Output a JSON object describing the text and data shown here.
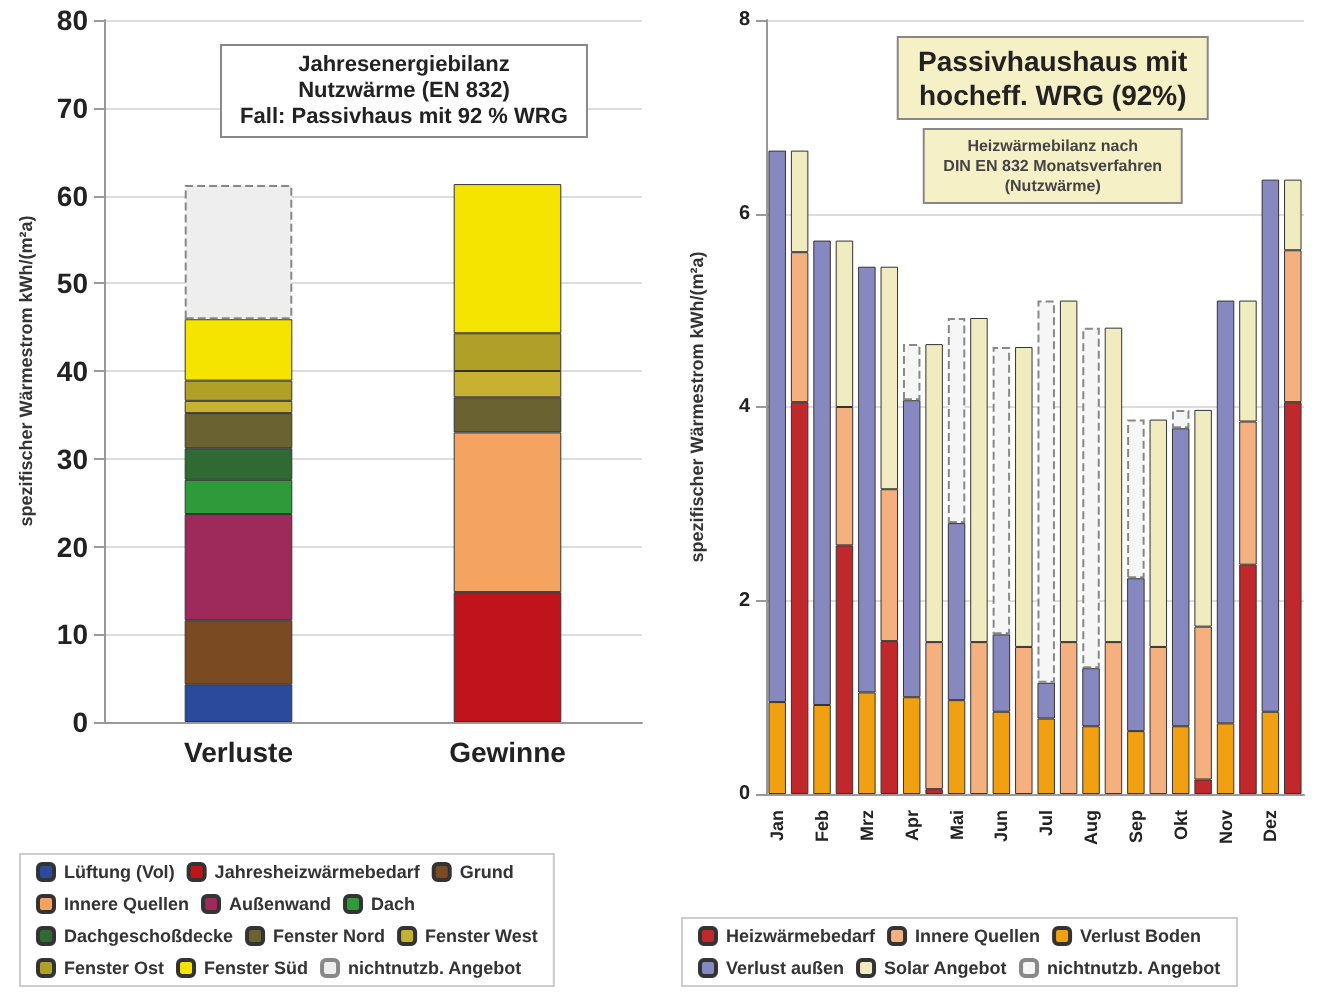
{
  "chart_data": [
    {
      "type": "bar",
      "stacked": true,
      "title": "Jahresenergiebilanz\nNutzwärme (EN 832)\nFall: Passivhaus mit 92 % WRG",
      "ylabel": "spezifischer Wärmestrom kWh/(m²a)",
      "categories": [
        "Verluste",
        "Gewinne"
      ],
      "ylim": [
        0,
        80
      ],
      "yticks": [
        0,
        10,
        20,
        30,
        40,
        50,
        60,
        70,
        80
      ],
      "grid": "y",
      "legend": "bottom",
      "series": [
        {
          "name": "Lüftung (Vol)",
          "color": "#2b4a9b",
          "values": [
            4.3,
            null
          ]
        },
        {
          "name": "Jahresheizwärmebedarf",
          "color": "#c0141c",
          "values": [
            null,
            14.8
          ]
        },
        {
          "name": "Grund",
          "color": "#7a4a22",
          "values": [
            7.3,
            null
          ]
        },
        {
          "name": "Innere Quellen",
          "color": "#f4a460",
          "values": [
            null,
            18.2
          ]
        },
        {
          "name": "Außenwand",
          "color": "#9e2a5a",
          "values": [
            12.1,
            null
          ]
        },
        {
          "name": "Dach",
          "color": "#2e9a3a",
          "values": [
            3.9,
            null
          ]
        },
        {
          "name": "Dachgeschoßdecke",
          "color": "#2f6a32",
          "values": [
            3.6,
            null
          ]
        },
        {
          "name": "Fenster Nord",
          "color": "#6b6232",
          "values": [
            4.0,
            4.0
          ]
        },
        {
          "name": "Fenster West",
          "color": "#c8b030",
          "values": [
            1.4,
            3.0
          ]
        },
        {
          "name": "Fenster Ost",
          "color": "#b0a028",
          "values": [
            2.3,
            4.3
          ]
        },
        {
          "name": "Fenster Süd",
          "color": "#f5e400",
          "values": [
            7.0,
            17.0
          ]
        },
        {
          "name": "nichtnutzb. Angebot",
          "color": "#eeeeee",
          "values": [
            15.3,
            null
          ]
        }
      ]
    },
    {
      "type": "bar",
      "stacked": true,
      "title": "Passivhaushaus mit\nhocheff. WRG (92%)",
      "subtitle": "Heizwärmebilanz nach\nDIN EN 832 Monatsverfahren\n(Nutzwärme)",
      "ylabel": "spezifischer Wärmestrom kWh/(m²a)",
      "categories": [
        "Jan",
        null,
        "Feb",
        null,
        "Mrz",
        null,
        "Apr",
        null,
        "Mai",
        null,
        "Jun",
        null,
        "Jul",
        null,
        "Aug",
        null,
        "Sep",
        null,
        "Okt",
        null,
        "Nov",
        null,
        "Dez",
        null
      ],
      "ylim": [
        0,
        8
      ],
      "yticks": [
        0,
        2,
        4,
        6,
        8
      ],
      "grid": "y",
      "legend": "bottom",
      "series": [
        {
          "name": "Heizwärmebedarf",
          "color": "#c0282c",
          "values": [
            null,
            4.05,
            null,
            2.57,
            null,
            1.58,
            null,
            0.05,
            null,
            null,
            null,
            null,
            null,
            null,
            null,
            null,
            null,
            null,
            null,
            0.15,
            null,
            2.37,
            null,
            4.05
          ]
        },
        {
          "name": "Innere Quellen",
          "color": "#f5b080",
          "values": [
            null,
            1.55,
            null,
            1.43,
            null,
            1.57,
            null,
            1.52,
            null,
            1.57,
            null,
            1.52,
            null,
            1.57,
            null,
            1.57,
            null,
            1.52,
            null,
            1.58,
            null,
            1.48,
            null,
            1.57
          ]
        },
        {
          "name": "Verlust Boden",
          "color": "#f0a010",
          "values": [
            0.95,
            null,
            0.92,
            null,
            1.05,
            null,
            1.0,
            null,
            0.97,
            null,
            0.85,
            null,
            0.78,
            null,
            0.7,
            null,
            0.65,
            null,
            0.7,
            null,
            0.73,
            null,
            0.85,
            null
          ]
        },
        {
          "name": "Verlust außen",
          "color": "#8888c0",
          "values": [
            5.7,
            null,
            4.8,
            null,
            4.4,
            null,
            3.07,
            null,
            1.83,
            null,
            0.8,
            null,
            0.37,
            null,
            0.6,
            null,
            1.58,
            null,
            3.08,
            null,
            4.37,
            null,
            5.5,
            null
          ]
        },
        {
          "name": "Solar Angebot",
          "color": "#f0ecc0",
          "values": [
            null,
            1.05,
            null,
            1.72,
            null,
            2.3,
            null,
            3.08,
            null,
            3.35,
            null,
            3.1,
            null,
            3.53,
            null,
            3.25,
            null,
            2.35,
            null,
            2.24,
            null,
            1.25,
            null,
            0.73
          ]
        },
        {
          "name": "nichtnutzb. Angebot",
          "color": "#f6f6f6",
          "values": [
            null,
            null,
            null,
            null,
            null,
            null,
            0.58,
            null,
            2.12,
            null,
            2.97,
            null,
            3.95,
            null,
            3.52,
            null,
            1.64,
            null,
            0.19,
            null,
            null,
            null,
            null,
            null
          ]
        }
      ]
    }
  ]
}
